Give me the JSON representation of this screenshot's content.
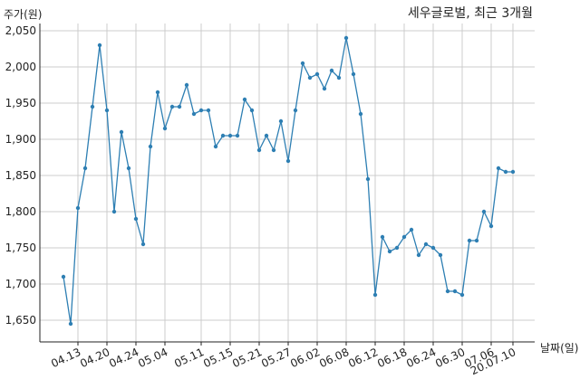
{
  "chart_data": {
    "type": "line",
    "title": "세우글로벌, 최근 3개월",
    "ylabel": "주가(원)",
    "xlabel": "날짜(일)",
    "ylim": [
      1620,
      2060
    ],
    "yticks": [
      1650,
      1700,
      1750,
      1800,
      1850,
      1900,
      1950,
      2000,
      2050
    ],
    "ytick_labels": [
      "1,650",
      "1,700",
      "1,750",
      "1,800",
      "1,850",
      "1,900",
      "1,950",
      "2,000",
      "2,050"
    ],
    "xtick_labels": [
      "04.13",
      "04.20",
      "04.24",
      "05.04",
      "05.11",
      "05.15",
      "05.21",
      "05.27",
      "06.02",
      "06.08",
      "06.12",
      "06.18",
      "06.24",
      "06.30",
      "07.06",
      "20.07.10"
    ],
    "xtick_index": [
      2,
      6,
      10,
      14,
      19,
      23,
      27,
      31,
      35,
      39,
      43,
      47,
      51,
      55,
      59,
      62
    ],
    "grid": true,
    "series": [
      {
        "color": "#2e7fb3",
        "values": [
          1710,
          1645,
          1805,
          1860,
          1945,
          2030,
          1940,
          1800,
          1910,
          1860,
          1790,
          1755,
          1890,
          1965,
          1915,
          1945,
          1945,
          1975,
          1935,
          1940,
          1940,
          1890,
          1905,
          1905,
          1905,
          1955,
          1940,
          1885,
          1905,
          1885,
          1925,
          1870,
          1940,
          2005,
          1985,
          1990,
          1970,
          1995,
          1985,
          2040,
          1990,
          1935,
          1845,
          1685,
          1765,
          1745,
          1750,
          1765,
          1775,
          1740,
          1755,
          1750,
          1740,
          1690,
          1690,
          1685,
          1760,
          1760,
          1800,
          1780,
          1860,
          1855,
          1855
        ]
      }
    ]
  }
}
